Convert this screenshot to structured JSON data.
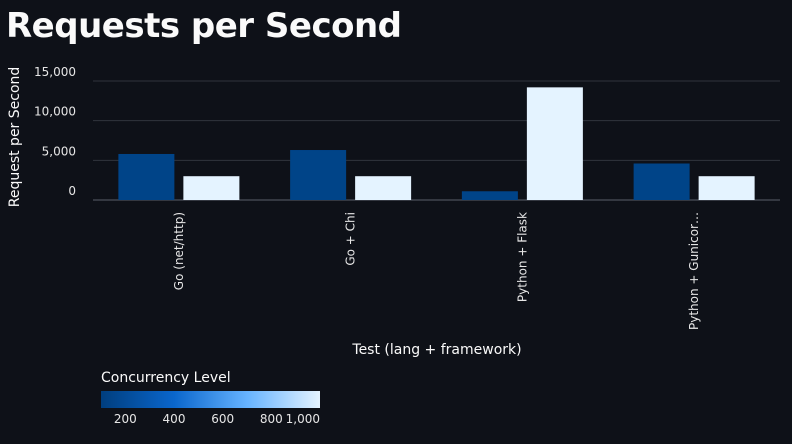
{
  "page": {
    "title": "Requests per Second"
  },
  "chart_data": {
    "type": "bar",
    "title": "",
    "xlabel": "Test (lang + framework)",
    "ylabel": "Request per Second",
    "ylim": [
      0,
      15000
    ],
    "yticks": [
      0,
      5000,
      10000,
      15000
    ],
    "ytick_labels": [
      "0",
      "5,000",
      "10,000",
      "15,000"
    ],
    "categories": [
      "Go (net/http)",
      "Go + Chi",
      "Python + Flask",
      "Python + Gunicor…"
    ],
    "series": [
      {
        "name": "100",
        "color": "#004488",
        "values": [
          5800,
          6300,
          1100,
          4600
        ]
      },
      {
        "name": "1000",
        "color": "#e4f3ff",
        "values": [
          3000,
          3000,
          14200,
          3000
        ]
      }
    ],
    "grid": true,
    "legend": {
      "title": "Concurrency Level",
      "position": "bottom-left",
      "type": "color-gradient",
      "range": [
        100,
        1000
      ],
      "ticks": [
        200,
        400,
        600,
        800,
        1000
      ],
      "tick_labels": [
        "200",
        "400",
        "600",
        "800",
        "1,000"
      ],
      "colors": [
        "#003e7e",
        "#0a66cc",
        "#66b3ff",
        "#e4f3ff"
      ]
    }
  }
}
